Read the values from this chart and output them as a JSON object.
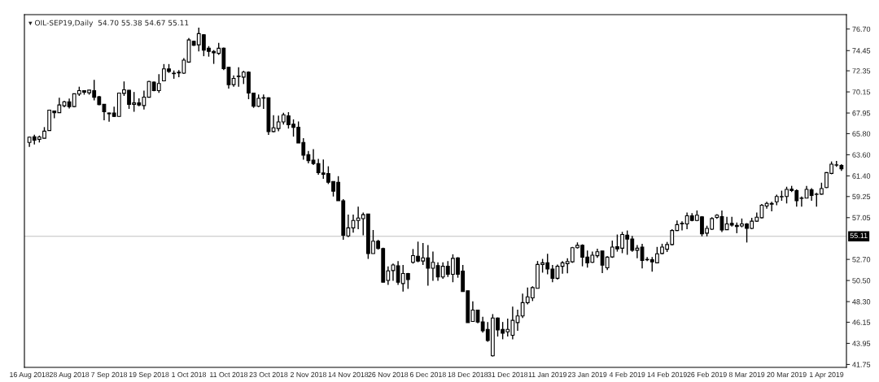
{
  "chart_data": {
    "type": "candlestick",
    "title": "▾ OIL-SEP19,Daily  54.70 55.38 54.67 55.11",
    "categories": [
      "16 Aug 2018",
      null,
      null,
      null,
      null,
      null,
      null,
      null,
      "28 Aug 2018",
      null,
      null,
      null,
      null,
      null,
      null,
      null,
      "7 Sep 2018",
      null,
      null,
      null,
      null,
      null,
      null,
      null,
      "19 Sep 2018",
      null,
      null,
      null,
      null,
      null,
      null,
      null,
      "1 Oct 2018",
      null,
      null,
      null,
      null,
      null,
      null,
      null,
      "11 Oct 2018",
      null,
      null,
      null,
      null,
      null,
      null,
      null,
      "23 Oct 2018",
      null,
      null,
      null,
      null,
      null,
      null,
      null,
      "2 Nov 2018",
      null,
      null,
      null,
      null,
      null,
      null,
      null,
      "14 Nov 2018",
      null,
      null,
      null,
      null,
      null,
      null,
      null,
      "26 Nov 2018",
      null,
      null,
      null,
      null,
      null,
      null,
      null,
      "6 Dec 2018",
      null,
      null,
      null,
      null,
      null,
      null,
      null,
      "18 Dec 2018",
      null,
      null,
      null,
      null,
      null,
      null,
      null,
      "31 Dec 2018",
      null,
      null,
      null,
      null,
      null,
      null,
      null,
      "11 Jan 2019",
      null,
      null,
      null,
      null,
      null,
      null,
      null,
      "23 Jan 2019",
      null,
      null,
      null,
      null,
      null,
      null,
      null,
      "4 Feb 2019",
      null,
      null,
      null,
      null,
      null,
      null,
      null,
      "14 Feb 2019",
      null,
      null,
      null,
      null,
      null,
      null,
      null,
      "26 Feb 2019",
      null,
      null,
      null,
      null,
      null,
      null,
      null,
      "8 Mar 2019",
      null,
      null,
      null,
      null,
      null,
      null,
      null,
      "20 Mar 2019",
      null,
      null,
      null,
      null,
      null,
      null,
      null,
      "1 Apr 2019",
      null,
      null,
      null
    ],
    "ohlc": [
      [
        64.88,
        65.5,
        64.41,
        65.43
      ],
      [
        65.47,
        65.69,
        64.67,
        65.13
      ],
      [
        65.21,
        65.6,
        64.88,
        65.46
      ],
      [
        65.32,
        66.48,
        65.3,
        66.06
      ],
      [
        66.12,
        68.28,
        66.1,
        68.25
      ],
      [
        68.17,
        68.2,
        67.4,
        67.98
      ],
      [
        67.99,
        69.54,
        67.95,
        68.79
      ],
      [
        68.71,
        69.23,
        68.54,
        69.12
      ],
      [
        69.12,
        69.45,
        68.41,
        68.62
      ],
      [
        68.62,
        69.95,
        68.54,
        69.95
      ],
      [
        69.92,
        70.69,
        69.73,
        70.28
      ],
      [
        70.28,
        70.3,
        69.86,
        70.11
      ],
      [
        70.06,
        70.35,
        69.86,
        70.34
      ],
      [
        70.28,
        71.41,
        69.26,
        69.59
      ],
      [
        69.65,
        69.73,
        68.76,
        68.82
      ],
      [
        68.85,
        68.85,
        67.2,
        68.08
      ],
      [
        67.95,
        68.0,
        67.05,
        67.87
      ],
      [
        67.95,
        68.6,
        67.55,
        67.59
      ],
      [
        67.59,
        70.05,
        67.55,
        70.03
      ],
      [
        70.0,
        71.24,
        69.73,
        70.37
      ],
      [
        70.32,
        70.35,
        68.38,
        68.85
      ],
      [
        68.85,
        70.14,
        68.08,
        69.0
      ],
      [
        69.0,
        69.47,
        68.65,
        68.79
      ],
      [
        68.73,
        70.28,
        68.32,
        69.61
      ],
      [
        69.59,
        71.3,
        69.59,
        71.24
      ],
      [
        71.16,
        71.24,
        70.22,
        70.28
      ],
      [
        70.28,
        71.99,
        70.06,
        71.02
      ],
      [
        71.3,
        73.05,
        71.3,
        72.55
      ],
      [
        72.55,
        73.05,
        72.13,
        72.27
      ],
      [
        72.1,
        72.38,
        71.52,
        72.05
      ],
      [
        72.13,
        72.43,
        71.69,
        72.2
      ],
      [
        72.1,
        73.68,
        72.02,
        73.46
      ],
      [
        73.26,
        75.76,
        73.18,
        75.56
      ],
      [
        75.42,
        75.5,
        74.95,
        75.0
      ],
      [
        75.06,
        76.85,
        74.37,
        76.22
      ],
      [
        76.11,
        76.17,
        73.87,
        74.51
      ],
      [
        74.7,
        74.92,
        73.82,
        74.37
      ],
      [
        74.37,
        74.51,
        73.07,
        74.23
      ],
      [
        74.17,
        75.25,
        74.01,
        74.7
      ],
      [
        74.7,
        74.78,
        72.43,
        72.57
      ],
      [
        72.71,
        72.71,
        70.49,
        70.91
      ],
      [
        70.91,
        71.88,
        70.68,
        71.55
      ],
      [
        71.75,
        72.71,
        70.68,
        71.8
      ],
      [
        71.69,
        72.35,
        70.97,
        72.21
      ],
      [
        72.21,
        72.29,
        69.39,
        70.03
      ],
      [
        70.03,
        70.03,
        68.49,
        68.65
      ],
      [
        68.65,
        69.87,
        68.57,
        69.48
      ],
      [
        69.5,
        69.87,
        68.38,
        69.55
      ],
      [
        69.53,
        69.59,
        65.66,
        66.02
      ],
      [
        66.02,
        67.73,
        65.94,
        66.41
      ],
      [
        66.33,
        67.67,
        66.05,
        67.02
      ],
      [
        67.02,
        67.98,
        66.74,
        67.76
      ],
      [
        67.65,
        68.04,
        66.33,
        66.74
      ],
      [
        66.79,
        67.29,
        65.49,
        66.46
      ],
      [
        66.46,
        67.07,
        64.83,
        64.83
      ],
      [
        64.88,
        65.32,
        63.09,
        63.56
      ],
      [
        63.6,
        64.0,
        62.7,
        62.98
      ],
      [
        63.04,
        64.18,
        62.54,
        62.68
      ],
      [
        62.67,
        63.17,
        61.51,
        61.73
      ],
      [
        61.7,
        63.11,
        61.09,
        61.57
      ],
      [
        61.65,
        62.4,
        60.55,
        60.74
      ],
      [
        60.82,
        60.82,
        59.25,
        59.8
      ],
      [
        60.74,
        61.37,
        58.81,
        58.81
      ],
      [
        58.81,
        58.97,
        54.74,
        55.21
      ],
      [
        55.15,
        57.36,
        55.01,
        55.98
      ],
      [
        55.98,
        57.36,
        55.49,
        56.76
      ],
      [
        56.76,
        58.19,
        55.84,
        57.01
      ],
      [
        56.95,
        57.58,
        55.21,
        57.36
      ],
      [
        57.42,
        57.42,
        52.75,
        53.3
      ],
      [
        53.3,
        55.76,
        53.3,
        54.6
      ],
      [
        54.6,
        54.74,
        53.72,
        53.83
      ],
      [
        53.83,
        53.91,
        50.32,
        50.32
      ],
      [
        50.51,
        51.98,
        50.04,
        51.51
      ],
      [
        51.54,
        52.26,
        50.46,
        52.12
      ],
      [
        52.04,
        52.53,
        50.04,
        50.32
      ],
      [
        50.18,
        52.12,
        49.35,
        51.23
      ],
      [
        51.23,
        51.29,
        49.63,
        50.59
      ],
      [
        52.4,
        53.78,
        52.26,
        53.09
      ],
      [
        53.03,
        54.55,
        52.4,
        52.53
      ],
      [
        52.53,
        54.41,
        52.12,
        52.86
      ],
      [
        52.86,
        54.19,
        49.97,
        51.78
      ],
      [
        51.78,
        53.51,
        50.46,
        52.4
      ],
      [
        52.06,
        52.4,
        50.46,
        50.87
      ],
      [
        50.87,
        52.4,
        50.68,
        51.98
      ],
      [
        51.98,
        52.53,
        50.87,
        51.15
      ],
      [
        51.15,
        53.23,
        50.32,
        52.81
      ],
      [
        52.86,
        52.93,
        50.79,
        51.15
      ],
      [
        51.48,
        52.12,
        49.35,
        49.35
      ],
      [
        49.43,
        49.43,
        46.12,
        46.12
      ],
      [
        46.23,
        48.33,
        46.2,
        47.42
      ],
      [
        47.42,
        47.47,
        46.04,
        46.18
      ],
      [
        46.18,
        46.73,
        45.07,
        45.27
      ],
      [
        45.41,
        46.18,
        44.11,
        44.25
      ],
      [
        42.66,
        47.0,
        42.58,
        46.59
      ],
      [
        46.59,
        46.65,
        44.66,
        45.35
      ],
      [
        45.41,
        46.18,
        44.38,
        45.02
      ],
      [
        45.16,
        46.54,
        44.66,
        45.41
      ],
      [
        44.8,
        47.78,
        44.38,
        46.35
      ],
      [
        46.12,
        47.47,
        45.27,
        46.81
      ],
      [
        46.81,
        49.13,
        46.59,
        48.19
      ],
      [
        48.19,
        49.76,
        48.02,
        48.8
      ],
      [
        48.69,
        49.9,
        48.36,
        49.76
      ],
      [
        49.68,
        52.53,
        49.68,
        52.17
      ],
      [
        52.17,
        52.75,
        51.32,
        52.34
      ],
      [
        52.34,
        53.28,
        51.15,
        51.7
      ],
      [
        51.7,
        52.12,
        50.32,
        50.73
      ],
      [
        50.73,
        52.17,
        50.59,
        51.98
      ],
      [
        51.98,
        52.53,
        51.21,
        52.34
      ],
      [
        52.26,
        52.81,
        51.26,
        52.48
      ],
      [
        52.45,
        54.0,
        52.34,
        53.92
      ],
      [
        53.92,
        54.47,
        53.83,
        54.16
      ],
      [
        54.16,
        54.27,
        51.98,
        52.93
      ],
      [
        52.93,
        53.62,
        51.84,
        52.34
      ],
      [
        52.4,
        53.51,
        52.34,
        53.14
      ],
      [
        53.08,
        53.81,
        52.87,
        53.49
      ],
      [
        53.57,
        53.57,
        51.27,
        52.1
      ],
      [
        51.82,
        53.04,
        51.6,
        52.93
      ],
      [
        52.96,
        54.66,
        52.87,
        53.98
      ],
      [
        54.03,
        55.29,
        53.51,
        53.79
      ],
      [
        53.87,
        55.57,
        53.35,
        55.29
      ],
      [
        55.23,
        55.71,
        53.18,
        54.82
      ],
      [
        54.82,
        55.15,
        53.49,
        53.65
      ],
      [
        53.65,
        54.19,
        52.81,
        53.87
      ],
      [
        53.98,
        54.33,
        51.76,
        52.6
      ],
      [
        52.66,
        52.95,
        52.53,
        52.7
      ],
      [
        52.67,
        52.95,
        51.43,
        52.45
      ],
      [
        52.34,
        54.0,
        52.34,
        53.28
      ],
      [
        53.32,
        54.33,
        53.23,
        53.98
      ],
      [
        53.76,
        54.52,
        53.47,
        54.25
      ],
      [
        54.25,
        55.84,
        54.16,
        55.71
      ],
      [
        55.71,
        56.76,
        55.65,
        56.32
      ],
      [
        56.4,
        56.68,
        55.71,
        56.46
      ],
      [
        56.4,
        57.58,
        55.84,
        57.24
      ],
      [
        57.24,
        57.52,
        56.68,
        56.76
      ],
      [
        56.76,
        57.8,
        56.68,
        57.3
      ],
      [
        57.13,
        57.21,
        55.1,
        55.37
      ],
      [
        55.43,
        56.21,
        55.1,
        55.93
      ],
      [
        55.85,
        57.1,
        55.76,
        56.96
      ],
      [
        57.07,
        57.41,
        56.93,
        57.3
      ],
      [
        57.16,
        57.8,
        55.54,
        55.76
      ],
      [
        55.79,
        57.13,
        55.76,
        56.4
      ],
      [
        56.46,
        57.13,
        56.13,
        56.27
      ],
      [
        56.24,
        56.54,
        55.43,
        56.12
      ],
      [
        56.18,
        56.96,
        56.04,
        56.4
      ],
      [
        56.4,
        56.48,
        54.46,
        55.93
      ],
      [
        55.93,
        57.04,
        55.85,
        56.68
      ],
      [
        56.68,
        57.59,
        56.6,
        57.1
      ],
      [
        57.04,
        58.48,
        56.96,
        58.34
      ],
      [
        58.26,
        58.7,
        57.98,
        58.53
      ],
      [
        58.45,
        58.7,
        57.7,
        58.53
      ],
      [
        58.7,
        59.44,
        58.34,
        59.25
      ],
      [
        59.22,
        59.86,
        58.81,
        59.25
      ],
      [
        59.25,
        60.27,
        58.53,
        60.0
      ],
      [
        60.02,
        60.36,
        59.72,
        59.88
      ],
      [
        59.86,
        60.0,
        58.2,
        58.81
      ],
      [
        59.06,
        59.25,
        58.2,
        59.09
      ],
      [
        59.08,
        60.36,
        59.08,
        59.99
      ],
      [
        59.94,
        60.13,
        58.81,
        59.36
      ],
      [
        59.47,
        59.64,
        58.2,
        59.5
      ],
      [
        59.5,
        60.69,
        59.44,
        60.08
      ],
      [
        60.19,
        61.79,
        60.13,
        61.74
      ],
      [
        61.66,
        62.9,
        61.57,
        62.62
      ],
      [
        62.52,
        62.95,
        62.35,
        62.55
      ],
      [
        62.49,
        62.62,
        61.93,
        62.13
      ]
    ],
    "ylim": [
      41.45,
      78.2
    ],
    "yticks": [
      {
        "value": 76.7,
        "label": "76.70"
      },
      74.45,
      72.35,
      70.15,
      67.95,
      {
        "value": 65.8,
        "label": "65.80"
      },
      {
        "value": 63.6,
        "label": "63.60"
      },
      {
        "value": 61.4,
        "label": "61.40"
      },
      59.25,
      57.05,
      {
        "value": 52.7,
        "label": "52.70"
      },
      {
        "value": 50.5,
        "label": "50.50"
      },
      {
        "value": 48.3,
        "label": "48.30"
      },
      46.15,
      43.95,
      41.75
    ],
    "ref_lines": [
      {
        "axis": "y",
        "value": 55.11,
        "label": "55.11",
        "color": "#c0c0c0"
      }
    ],
    "grid": false
  }
}
